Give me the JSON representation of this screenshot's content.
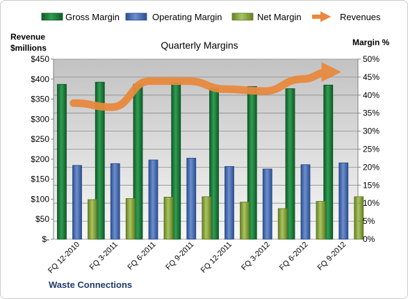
{
  "chart_data": {
    "type": "bar",
    "title": "Quarterly Margins",
    "left_axis_label_line1": "Revenue",
    "left_axis_label_line2": "$millions",
    "right_axis_label": "Margin %",
    "footer": "Waste Connections",
    "categories": [
      "FQ 12-2010",
      "FQ 3-2011",
      "FQ 6-2011",
      "FQ 9-2011",
      "FQ 12-2011",
      "FQ 3-2012",
      "FQ 6-2012",
      "FQ 9-2012"
    ],
    "left_axis": {
      "min": 0,
      "max": 450,
      "step": 50,
      "ticks": [
        "$-",
        "$50",
        "$100",
        "$150",
        "$200",
        "$250",
        "$300",
        "$350",
        "$400",
        "$450"
      ]
    },
    "right_axis": {
      "min": 0,
      "max": 50,
      "step": 5,
      "ticks": [
        "0%",
        "5%",
        "10%",
        "15%",
        "20%",
        "25%",
        "30%",
        "35%",
        "40%",
        "45%",
        "50%"
      ]
    },
    "series": [
      {
        "name": "Gross Margin",
        "kind": "bar",
        "axis": "right",
        "color": "#1e7a3c",
        "values": [
          43.0,
          43.6,
          43.0,
          43.4,
          42.0,
          42.4,
          41.8,
          42.8
        ]
      },
      {
        "name": "Operating Margin",
        "kind": "bar",
        "axis": "right",
        "color": "#4a6fb5",
        "values": [
          20.5,
          21.0,
          22.0,
          22.5,
          20.2,
          19.5,
          20.7,
          21.2
        ]
      },
      {
        "name": "Net Margin",
        "kind": "bar",
        "axis": "right",
        "color": "#8aab3d",
        "values": [
          11.0,
          11.3,
          11.7,
          11.8,
          10.3,
          8.5,
          10.5,
          11.8
        ]
      },
      {
        "name": "Revenues",
        "kind": "line",
        "axis": "left",
        "color": "#e8893e",
        "values": [
          340,
          330,
          395,
          395,
          375,
          370,
          400,
          425
        ]
      }
    ],
    "grid": true,
    "legend_position": "top"
  }
}
